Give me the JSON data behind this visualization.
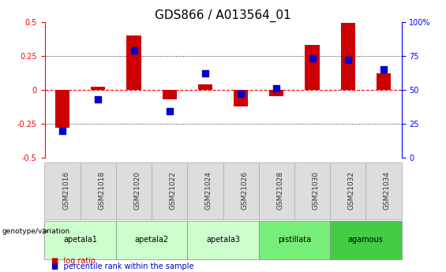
{
  "title": "GDS866 / A013564_01",
  "samples": [
    "GSM21016",
    "GSM21018",
    "GSM21020",
    "GSM21022",
    "GSM21024",
    "GSM21026",
    "GSM21028",
    "GSM21030",
    "GSM21032",
    "GSM21034"
  ],
  "log_ratio": [
    -0.28,
    0.02,
    0.4,
    -0.07,
    0.04,
    -0.12,
    -0.05,
    0.33,
    0.49,
    0.12
  ],
  "percentile_rank": [
    20,
    43,
    79,
    34,
    62,
    47,
    51,
    73,
    72,
    65
  ],
  "ylim_left": [
    -0.5,
    0.5
  ],
  "ylim_right": [
    0,
    100
  ],
  "yticks_left": [
    -0.5,
    -0.25,
    0.0,
    0.25,
    0.5
  ],
  "yticks_right": [
    0,
    25,
    50,
    75,
    100
  ],
  "ytick_labels_left": [
    "-0.5",
    "-0.25",
    "0",
    "0.25",
    "0.5"
  ],
  "ytick_labels_right": [
    "0",
    "25",
    "50",
    "75",
    "100%"
  ],
  "hlines_dotted": [
    -0.25,
    0.25
  ],
  "bar_color": "#cc0000",
  "dot_color": "#0000cc",
  "bar_width": 0.4,
  "dot_size": 40,
  "group_defs": [
    {
      "label": "apetala1",
      "indices": [
        0,
        1
      ],
      "color": "#ccffcc"
    },
    {
      "label": "apetala2",
      "indices": [
        2,
        3
      ],
      "color": "#ccffcc"
    },
    {
      "label": "apetala3",
      "indices": [
        4,
        5
      ],
      "color": "#ccffcc"
    },
    {
      "label": "pistillata",
      "indices": [
        6,
        7
      ],
      "color": "#77ee77"
    },
    {
      "label": "agamous",
      "indices": [
        8,
        9
      ],
      "color": "#44cc44"
    }
  ],
  "legend_bar_label": "log ratio",
  "legend_dot_label": "percentile rank within the sample",
  "genotype_label": "genotype/variation",
  "title_fontsize": 11,
  "tick_fontsize": 7,
  "label_fontsize": 7.5
}
